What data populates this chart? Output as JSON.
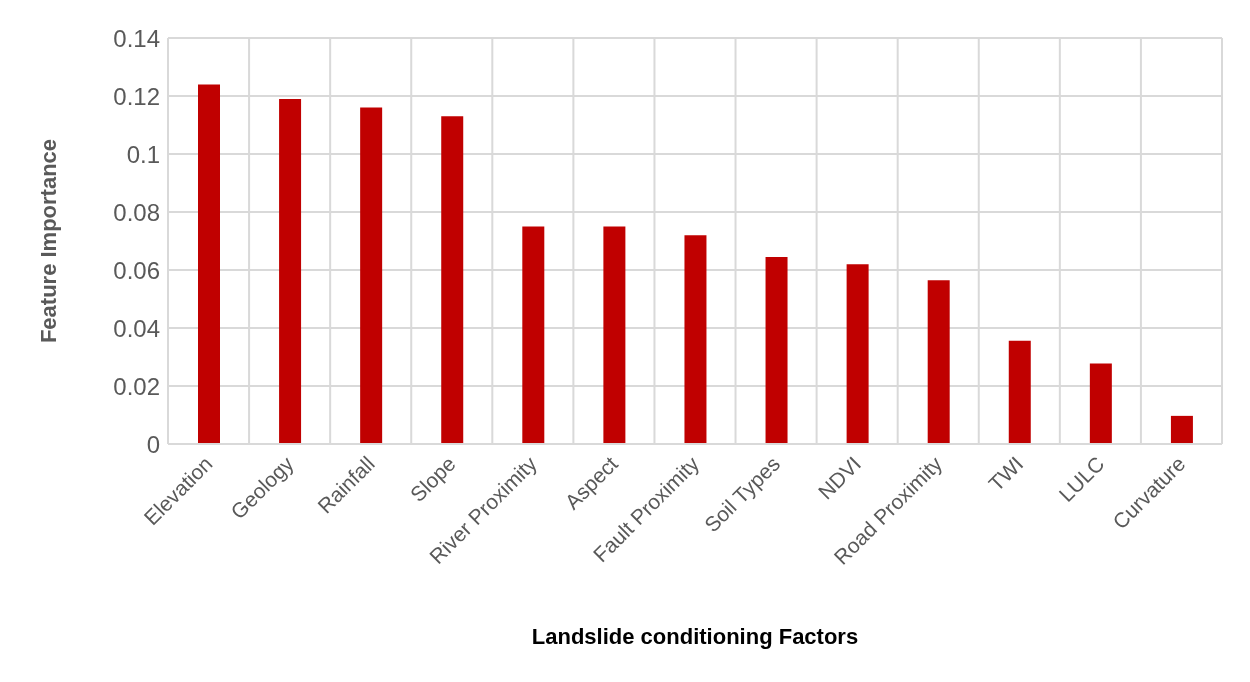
{
  "chart_data": {
    "type": "bar",
    "xlabel": "Landslide conditioning Factors",
    "ylabel": "Feature Importance",
    "categories": [
      "Elevation",
      "Geology",
      "Rainfall",
      "Slope",
      "River Proximity",
      "Aspect",
      "Fault Proximity",
      "Soil Types",
      "NDVI",
      "Road Proximity",
      "TWI",
      "LULC",
      "Curvature"
    ],
    "values": [
      0.124,
      0.119,
      0.116,
      0.113,
      0.075,
      0.075,
      0.072,
      0.0645,
      0.062,
      0.0565,
      0.0356,
      0.0278,
      0.0097
    ],
    "color": "#c00000",
    "ylim": [
      0,
      0.14
    ],
    "yticks": [
      0,
      0.02,
      0.04,
      0.06,
      0.08,
      0.1,
      0.12,
      0.14
    ],
    "grid": true
  }
}
